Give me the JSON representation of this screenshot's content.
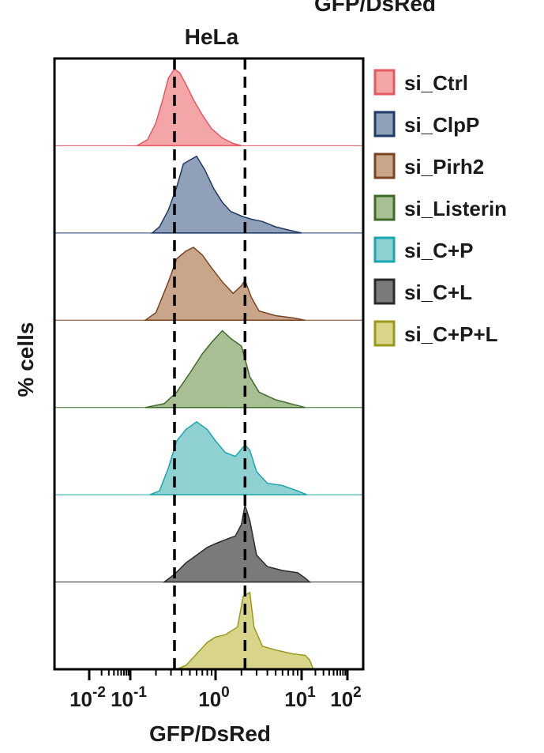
{
  "chart_data": {
    "type": "area",
    "title_partial": "GFP/DsRed",
    "title": "HeLa",
    "xlabel": "GFP/DsRed",
    "ylabel": "% cells",
    "x_scale": "log",
    "xlim": [
      0.01,
      100
    ],
    "x_ticks": [
      {
        "value": 0.01,
        "base": "10",
        "exp": "-2"
      },
      {
        "value": 0.1,
        "base": "10",
        "exp": "-1"
      },
      {
        "value": 1,
        "base": "10",
        "exp": "0"
      },
      {
        "value": 10,
        "base": "10",
        "exp": "1"
      },
      {
        "value": 100,
        "base": "10",
        "exp": "2"
      }
    ],
    "reference_lines_x": [
      0.33,
      2.2
    ],
    "legend_position": "right",
    "series": [
      {
        "name": "si_Ctrl",
        "fill": "#f4a5a8",
        "stroke": "#e35a63",
        "x": [
          0.12,
          0.16,
          0.2,
          0.24,
          0.28,
          0.33,
          0.38,
          0.45,
          0.55,
          0.7,
          0.9,
          1.2,
          1.6,
          2.0
        ],
        "y": [
          0.0,
          0.08,
          0.3,
          0.6,
          0.88,
          1.0,
          0.95,
          0.8,
          0.6,
          0.4,
          0.22,
          0.1,
          0.03,
          0.0
        ]
      },
      {
        "name": "si_ClpP",
        "fill": "#8fa0b8",
        "stroke": "#1f3a66",
        "x": [
          0.18,
          0.22,
          0.28,
          0.35,
          0.42,
          0.5,
          0.6,
          0.75,
          0.95,
          1.2,
          1.5,
          2.0,
          2.6,
          3.5,
          5.0,
          7.0,
          10.0
        ],
        "y": [
          0.0,
          0.08,
          0.3,
          0.6,
          0.9,
          0.95,
          1.0,
          0.82,
          0.58,
          0.4,
          0.28,
          0.22,
          0.18,
          0.15,
          0.08,
          0.04,
          0.0
        ]
      },
      {
        "name": "si_Pirh2",
        "fill": "#c9a68a",
        "stroke": "#7a4422",
        "x": [
          0.15,
          0.2,
          0.28,
          0.35,
          0.45,
          0.55,
          0.7,
          0.9,
          1.2,
          1.6,
          2.0,
          2.2,
          2.6,
          3.2,
          5.0,
          8.0,
          12.0
        ],
        "y": [
          0.0,
          0.1,
          0.5,
          0.8,
          0.9,
          0.95,
          0.85,
          0.68,
          0.5,
          0.35,
          0.45,
          0.52,
          0.3,
          0.12,
          0.06,
          0.03,
          0.0
        ]
      },
      {
        "name": "si_Listerin",
        "fill": "#a7bf92",
        "stroke": "#3d6b2a",
        "x": [
          0.15,
          0.25,
          0.35,
          0.5,
          0.7,
          0.9,
          1.2,
          1.5,
          2.0,
          2.5,
          3.2,
          5.0,
          8.0,
          12.0
        ],
        "y": [
          0.0,
          0.05,
          0.2,
          0.45,
          0.7,
          0.85,
          1.0,
          0.9,
          0.8,
          0.4,
          0.2,
          0.1,
          0.04,
          0.0
        ]
      },
      {
        "name": "si_C+P",
        "fill": "#8fd0d0",
        "stroke": "#1aa6b0",
        "x": [
          0.17,
          0.22,
          0.28,
          0.35,
          0.45,
          0.6,
          0.8,
          1.0,
          1.3,
          1.7,
          2.2,
          2.5,
          3.0,
          4.0,
          6.0,
          9.0,
          13.0
        ],
        "y": [
          0.0,
          0.05,
          0.35,
          0.7,
          0.85,
          0.95,
          0.85,
          0.7,
          0.55,
          0.5,
          0.65,
          0.58,
          0.3,
          0.15,
          0.12,
          0.05,
          0.0
        ]
      },
      {
        "name": "si_C+L",
        "fill": "#7a7a7a",
        "stroke": "#2b2b2b",
        "x": [
          0.25,
          0.33,
          0.45,
          0.6,
          0.8,
          1.0,
          1.3,
          1.7,
          2.0,
          2.2,
          2.5,
          3.0,
          4.0,
          6.0,
          9.0,
          12.0,
          15.0
        ],
        "y": [
          0.0,
          0.1,
          0.25,
          0.35,
          0.45,
          0.5,
          0.55,
          0.6,
          0.75,
          1.0,
          0.8,
          0.35,
          0.2,
          0.15,
          0.12,
          0.05,
          0.0
        ]
      },
      {
        "name": "si_C+P+L",
        "fill": "#d8d48a",
        "stroke": "#9a9a1a",
        "x": [
          0.35,
          0.45,
          0.6,
          0.8,
          1.0,
          1.3,
          1.8,
          2.1,
          2.5,
          2.8,
          3.5,
          5.0,
          8.0,
          12.0,
          15.0,
          18.0
        ],
        "y": [
          0.0,
          0.05,
          0.2,
          0.35,
          0.42,
          0.45,
          0.55,
          0.95,
          1.0,
          0.55,
          0.3,
          0.25,
          0.2,
          0.18,
          0.12,
          0.0
        ]
      }
    ]
  }
}
